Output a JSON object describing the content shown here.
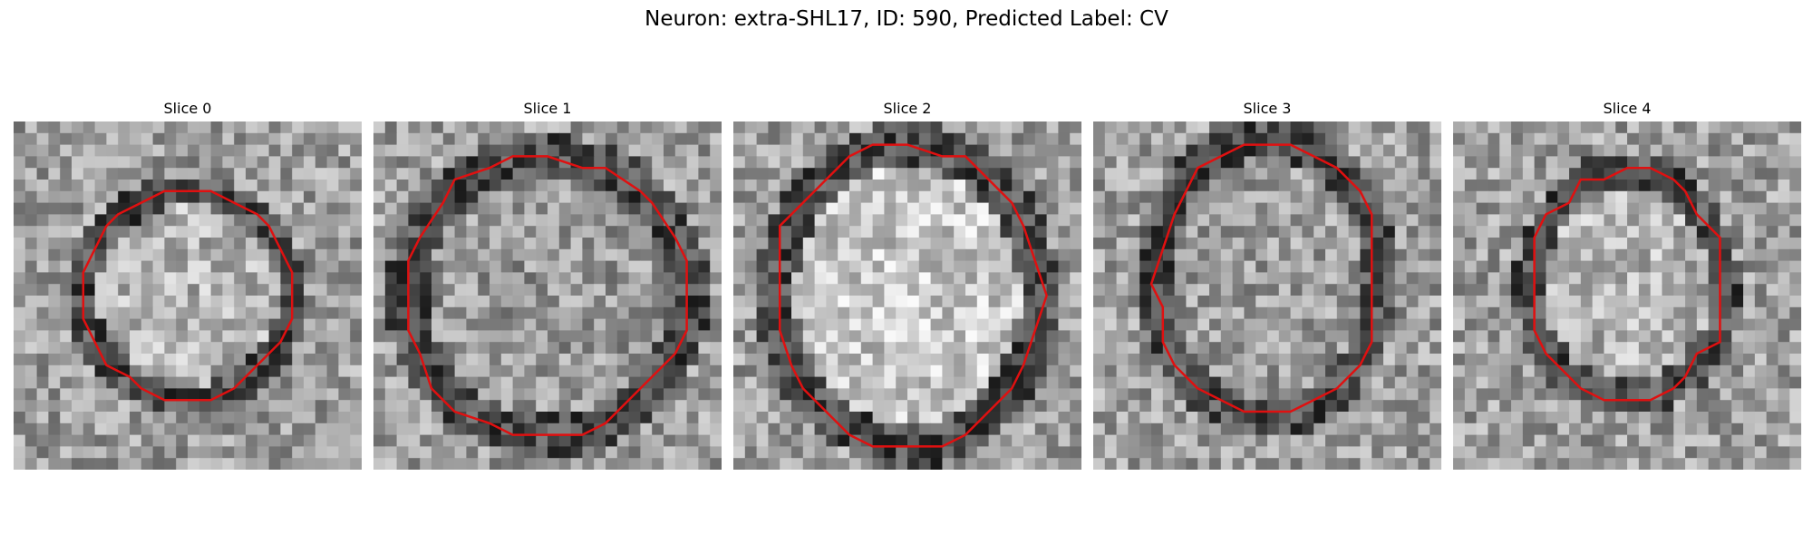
{
  "figure": {
    "title": "Neuron: extra-SHL17, ID: 590, Predicted Label: CV",
    "contour_color": "#e01010"
  },
  "panels": [
    {
      "title": "Slice 0"
    },
    {
      "title": "Slice 1"
    },
    {
      "title": "Slice 2"
    },
    {
      "title": "Slice 3"
    },
    {
      "title": "Slice 4"
    }
  ]
}
